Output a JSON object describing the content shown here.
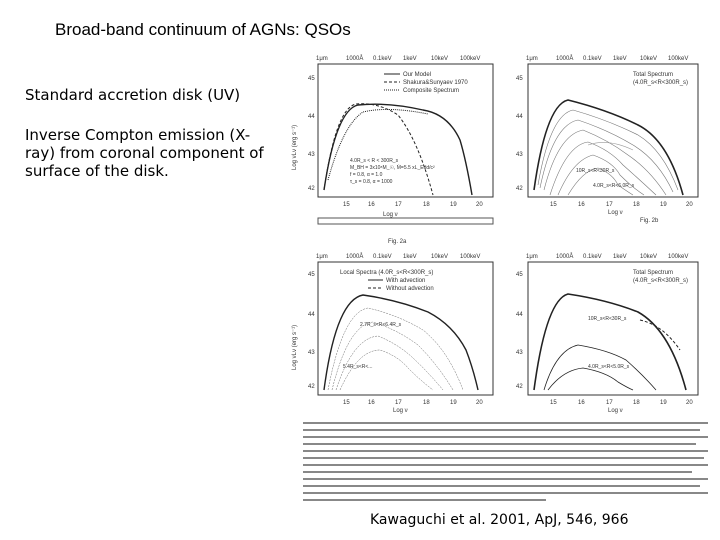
{
  "slide": {
    "title": "Broad-band continuum of AGNs: QSOs",
    "bullets": [
      "Standard accretion disk (UV)",
      "Inverse Compton emission (X-ray) from coronal component of surface of the disk."
    ],
    "citation": "Kawaguchi et al. 2001, ApJ, 546, 966"
  },
  "figure": {
    "top_axis_ticks": [
      "1μm",
      "1000Å",
      "0.1keV",
      "1keV",
      "10keV",
      "100keV"
    ],
    "ylabel": "Log νLν (erg s⁻¹)",
    "xlabel": "Log ν",
    "y_ticks": [
      "45",
      "44",
      "43",
      "42"
    ],
    "x_ticks": [
      "15",
      "16",
      "17",
      "18",
      "19",
      "20"
    ],
    "panels": {
      "a": {
        "legend": [
          "Our Model",
          "Shakura&Sunyaev 1970",
          "Composite Spectrum"
        ],
        "annotation": [
          "4.0R_s < R < 300R_s",
          "M_BH = 3x10⁸M_☉, Ṁ=5.5 xL_Edd/c²",
          "f = 0.8, α = 1.0",
          "τ_s = 0.8, α = 1000"
        ],
        "label": "Fig. 2a"
      },
      "b": {
        "legend": [
          "Total Spectrum",
          "(4.0R_s<R<300R_s)"
        ],
        "annotation": [
          "10R_s<R<30R_s",
          "4.0R_s<R<6.0R_s"
        ],
        "label": "Fig. 2b"
      },
      "c": {
        "legend": [
          "Local Spectra (4.0R_s<R<300R_s)",
          "With advection",
          "Without advection"
        ],
        "annotation": [
          "2.7R_s<R<6.4R_s",
          "5.4R_s<R<..."
        ]
      },
      "d": {
        "legend": [
          "Total Spectrum",
          "(4.0R_s<R<300R_s)"
        ],
        "annotation": [
          "10R_s<R<30R_s",
          "4.0R_s<R<5.0R_s"
        ]
      }
    }
  },
  "style": {
    "text_color": "#000000",
    "plot_color": "#222222",
    "background": "#ffffff"
  }
}
